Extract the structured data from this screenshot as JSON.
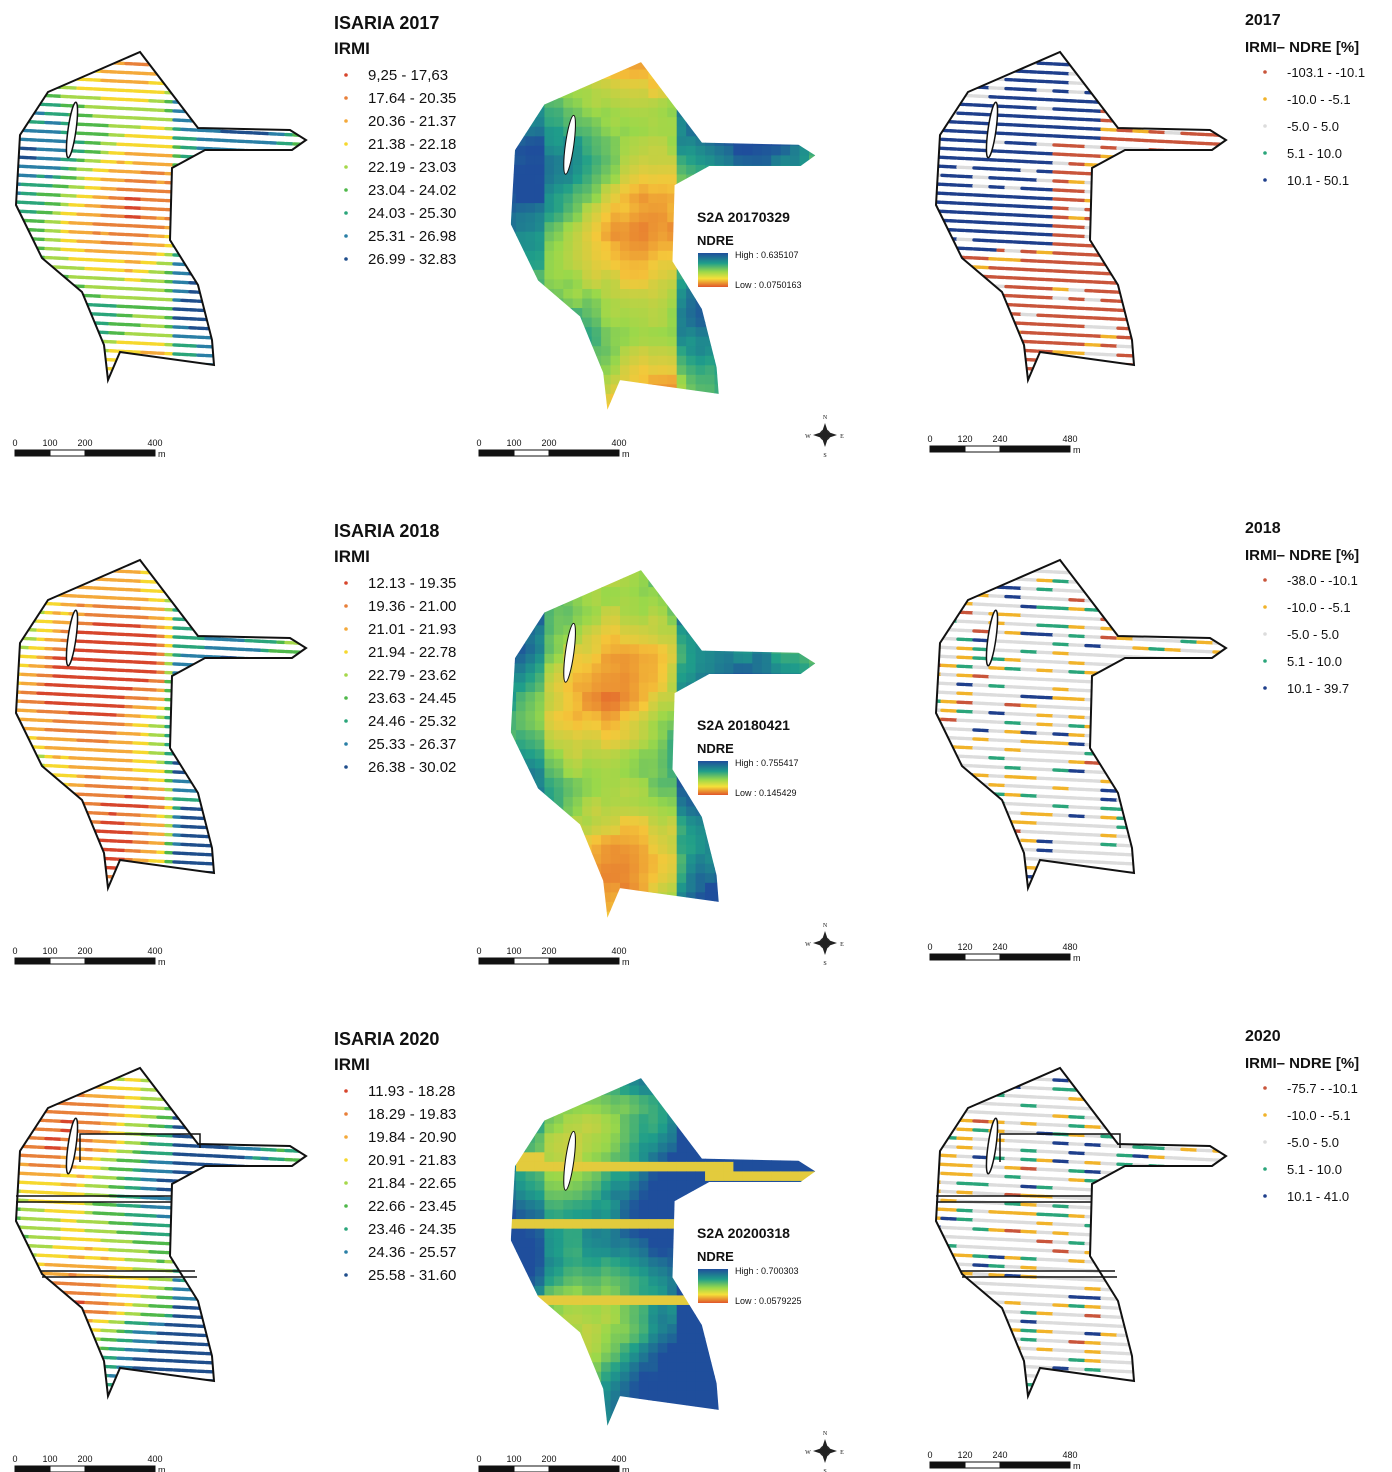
{
  "rows": [
    {
      "isaria": {
        "title": "ISARIA 2017",
        "subtitle": "IRMI",
        "classes": [
          {
            "label": "9,25 - 17,63",
            "color": "#d7452c"
          },
          {
            "label": "17.64 - 20.35",
            "color": "#e8803a"
          },
          {
            "label": "20.36 - 21.37",
            "color": "#f4a93a"
          },
          {
            "label": "21.38 - 22.18",
            "color": "#f6d82e"
          },
          {
            "label": "22.19 - 23.03",
            "color": "#a6d84a"
          },
          {
            "label": "23.04 - 24.02",
            "color": "#4fb84a"
          },
          {
            "label": "24.03 - 25.30",
            "color": "#2aa57a"
          },
          {
            "label": "25.31 - 26.98",
            "color": "#2a7fa6"
          },
          {
            "label": "26.99 - 32.83",
            "color": "#1f4e8c"
          }
        ],
        "scale": [
          "0",
          "100",
          "200",
          "400",
          "m"
        ]
      },
      "s2": {
        "title": "S2A 20170329",
        "subtitle": "NDRE",
        "high": "High : 0.635107",
        "low": "Low : 0.0750163",
        "scale": [
          "0",
          "100",
          "200",
          "400",
          "m"
        ],
        "compass": [
          "N",
          "S",
          "E",
          "W"
        ]
      },
      "diff": {
        "title": "2017",
        "subtitle": "IRMI– NDRE [%]",
        "classes": [
          {
            "label": "-103.1 - -10.1",
            "color": "#c9553b"
          },
          {
            "label": "-10.0 - -5.1",
            "color": "#f1b32a"
          },
          {
            "label": "-5.0 - 5.0",
            "color": "#dcdcdc"
          },
          {
            "label": "5.1 - 10.0",
            "color": "#2aa57a"
          },
          {
            "label": "10.1 - 50.1",
            "color": "#1f3f8c"
          }
        ],
        "scale": [
          "0",
          "120",
          "240",
          "480",
          "m"
        ]
      }
    },
    {
      "isaria": {
        "title": "ISARIA 2018",
        "subtitle": "IRMI",
        "classes": [
          {
            "label": "12.13 - 19.35",
            "color": "#d7452c"
          },
          {
            "label": "19.36 - 21.00",
            "color": "#e8803a"
          },
          {
            "label": "21.01 - 21.93",
            "color": "#f4a93a"
          },
          {
            "label": "21.94 - 22.78",
            "color": "#f6d82e"
          },
          {
            "label": "22.79 - 23.62",
            "color": "#a6d84a"
          },
          {
            "label": "23.63 - 24.45",
            "color": "#4fb84a"
          },
          {
            "label": "24.46 - 25.32",
            "color": "#2aa57a"
          },
          {
            "label": "25.33 - 26.37",
            "color": "#2a7fa6"
          },
          {
            "label": "26.38 - 30.02",
            "color": "#1f4e8c"
          }
        ],
        "scale": [
          "0",
          "100",
          "200",
          "400",
          "m"
        ]
      },
      "s2": {
        "title": "S2A 20180421",
        "subtitle": "NDRE",
        "high": "High : 0.755417",
        "low": "Low : 0.145429",
        "scale": [
          "0",
          "100",
          "200",
          "400",
          "m"
        ],
        "compass": [
          "N",
          "S",
          "E",
          "W"
        ]
      },
      "diff": {
        "title": "2018",
        "subtitle": "IRMI– NDRE [%]",
        "classes": [
          {
            "label": "-38.0 - -10.1",
            "color": "#c9553b"
          },
          {
            "label": "-10.0 - -5.1",
            "color": "#f1b32a"
          },
          {
            "label": "-5.0 - 5.0",
            "color": "#dcdcdc"
          },
          {
            "label": "5.1 - 10.0",
            "color": "#2aa57a"
          },
          {
            "label": "10.1 - 39.7",
            "color": "#1f3f8c"
          }
        ],
        "scale": [
          "0",
          "120",
          "240",
          "480",
          "m"
        ]
      }
    },
    {
      "isaria": {
        "title": "ISARIA 2020",
        "subtitle": "IRMI",
        "classes": [
          {
            "label": "11.93 - 18.28",
            "color": "#d7452c"
          },
          {
            "label": "18.29 - 19.83",
            "color": "#e8803a"
          },
          {
            "label": "19.84 - 20.90",
            "color": "#f4a93a"
          },
          {
            "label": "20.91 - 21.83",
            "color": "#f6d82e"
          },
          {
            "label": "21.84 - 22.65",
            "color": "#a6d84a"
          },
          {
            "label": "22.66 - 23.45",
            "color": "#4fb84a"
          },
          {
            "label": "23.46 - 24.35",
            "color": "#2aa57a"
          },
          {
            "label": "24.36 - 25.57",
            "color": "#2a7fa6"
          },
          {
            "label": "25.58 - 31.60",
            "color": "#1f4e8c"
          }
        ],
        "scale": [
          "0",
          "100",
          "200",
          "400",
          "m"
        ]
      },
      "s2": {
        "title": "S2A 20200318",
        "subtitle": "NDRE",
        "high": "High : 0.700303",
        "low": "Low : 0.0579225",
        "scale": [
          "0",
          "100",
          "200",
          "400",
          "m"
        ],
        "compass": [
          "N",
          "S",
          "E",
          "W"
        ]
      },
      "diff": {
        "title": "2020",
        "subtitle": "IRMI– NDRE [%]",
        "classes": [
          {
            "label": "-75.7 - -10.1",
            "color": "#c9553b"
          },
          {
            "label": "-10.0 - -5.1",
            "color": "#f1b32a"
          },
          {
            "label": "-5.0 - 5.0",
            "color": "#dcdcdc"
          },
          {
            "label": "5.1 - 10.0",
            "color": "#2aa57a"
          },
          {
            "label": "10.1 - 41.0",
            "color": "#1f3f8c"
          }
        ],
        "scale": [
          "0",
          "120",
          "240",
          "480",
          "m"
        ]
      }
    }
  ]
}
